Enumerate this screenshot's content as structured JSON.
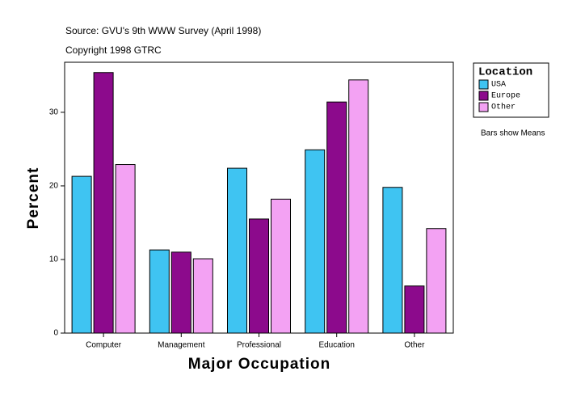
{
  "chart_data": {
    "type": "bar",
    "title": "Source: GVU's 9th WWW Survey (April 1998)",
    "subtitle": "Copyright 1998 GTRC",
    "note": "Bars show Means",
    "x_label": "Major Occupation",
    "y_label": "Percent",
    "legend_title": "Location",
    "legend_position": "right",
    "categories": [
      "Computer",
      "Management",
      "Professional",
      "Education",
      "Other"
    ],
    "series": [
      {
        "name": "USA",
        "color": "#3fc4f2",
        "values": [
          21.3,
          11.3,
          22.4,
          24.9,
          19.8
        ]
      },
      {
        "name": "Europe",
        "color": "#8c0a8c",
        "values": [
          35.4,
          11.0,
          15.5,
          31.4,
          6.4
        ]
      },
      {
        "name": "Other",
        "color": "#f3a2f3",
        "values": [
          22.9,
          10.1,
          18.2,
          34.4,
          14.2
        ]
      }
    ],
    "ylim": [
      0,
      36.8
    ],
    "yticks": [
      0,
      10,
      20,
      30
    ],
    "grid": false
  }
}
